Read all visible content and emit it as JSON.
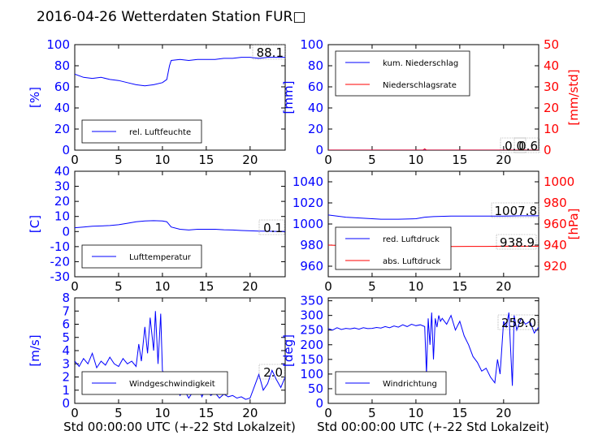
{
  "title": "2016-04-26 Wetterdaten Station FUR□",
  "xlabel": "Std 00:00:00 UTC (+-22 Std Lokalzeit)",
  "colors": {
    "primary": "#0000ff",
    "secondary": "#ff0000",
    "axis": "#000000"
  },
  "chart_data": [
    {
      "id": "humidity",
      "type": "line",
      "ylabel": "[%]",
      "ylim": [
        0,
        100
      ],
      "yticks": [
        0,
        20,
        40,
        60,
        80,
        100
      ],
      "xlim": [
        0,
        24
      ],
      "xticks": [
        0,
        5,
        10,
        15,
        20
      ],
      "legend": "lower-left",
      "annotation": "88.1",
      "series": [
        {
          "name": "rel. Luftfeuchte",
          "color": "#0000ff",
          "x": [
            0,
            1,
            2,
            3,
            4,
            5,
            6,
            7,
            8,
            9,
            10,
            10.5,
            10.8,
            11,
            12,
            13,
            14,
            15,
            16,
            17,
            18,
            19,
            20,
            21,
            22,
            23,
            24
          ],
          "y": [
            72,
            69,
            68,
            69,
            67,
            66,
            64,
            62,
            61,
            62,
            64,
            67,
            80,
            85,
            86,
            85,
            86,
            86,
            86,
            87,
            87,
            88,
            88,
            87,
            88,
            88,
            88
          ]
        }
      ]
    },
    {
      "id": "precip",
      "type": "line",
      "ylabel": "[mm]",
      "ylim": [
        0,
        100
      ],
      "yticks": [
        0,
        20,
        40,
        60,
        80,
        100
      ],
      "y2label": "[mm/std]",
      "y2lim": [
        0,
        50
      ],
      "y2ticks": [
        0,
        10,
        20,
        30,
        40,
        50
      ],
      "xlim": [
        0,
        24
      ],
      "xticks": [
        0,
        5,
        10,
        15,
        20
      ],
      "legend": "upper-left",
      "annotations": [
        "0.0",
        "0.6"
      ],
      "series": [
        {
          "name": "kum. Niederschlag",
          "axis": "left",
          "color": "#0000ff",
          "x": [
            0,
            24
          ],
          "y": [
            0.1,
            0.1
          ]
        },
        {
          "name": "Niederschlagsrate",
          "axis": "right",
          "color": "#ff0000",
          "x": [
            0,
            10.8,
            11,
            11.2,
            24
          ],
          "y": [
            0,
            0,
            0.6,
            0,
            0
          ]
        }
      ]
    },
    {
      "id": "temperature",
      "type": "line",
      "ylabel": "[C]",
      "ylim": [
        -30,
        40
      ],
      "yticks": [
        -30,
        -20,
        -10,
        0,
        10,
        20,
        30,
        40
      ],
      "xlim": [
        0,
        24
      ],
      "xticks": [
        0,
        5,
        10,
        15,
        20
      ],
      "legend": "lower-left",
      "annotation": "0.1",
      "series": [
        {
          "name": "Lufttemperatur",
          "color": "#0000ff",
          "x": [
            0,
            1,
            2,
            3,
            4,
            5,
            6,
            7,
            8,
            9,
            10,
            10.5,
            11,
            12,
            13,
            14,
            15,
            16,
            17,
            18,
            19,
            20,
            21,
            22,
            23,
            24
          ],
          "y": [
            2.5,
            3,
            3.5,
            3.7,
            4,
            4.5,
            5.5,
            6.5,
            7,
            7.2,
            7,
            6.5,
            3,
            1.5,
            1,
            1.5,
            1.5,
            1.5,
            1.2,
            1,
            0.7,
            0.5,
            0.3,
            0.2,
            0.1,
            0.1
          ]
        }
      ]
    },
    {
      "id": "pressure",
      "type": "line",
      "ylabel": "",
      "ylim": [
        950,
        1050
      ],
      "yticks": [
        960,
        980,
        1000,
        1020,
        1040
      ],
      "y2label": "[hPa]",
      "y2lim": [
        910,
        1010
      ],
      "y2ticks": [
        920,
        940,
        960,
        980,
        1000
      ],
      "xlim": [
        0,
        24
      ],
      "xticks": [
        0,
        5,
        10,
        15,
        20
      ],
      "legend": "lower-left",
      "annotations": [
        "1007.8",
        "938.9"
      ],
      "series": [
        {
          "name": "red. Luftdruck",
          "axis": "left",
          "color": "#0000ff",
          "x": [
            0,
            2,
            4,
            6,
            8,
            10,
            11,
            12,
            14,
            16,
            18,
            20,
            22,
            24
          ],
          "y": [
            1008.5,
            1006.5,
            1005.5,
            1004.5,
            1004.5,
            1005,
            1006.5,
            1007,
            1007.5,
            1007.5,
            1007.5,
            1007.5,
            1007.8,
            1007.8
          ]
        },
        {
          "name": "abs. Luftdruck",
          "axis": "right",
          "color": "#ff0000",
          "x": [
            0,
            2,
            4,
            6,
            8,
            10,
            12,
            14,
            16,
            18,
            20,
            22,
            24
          ],
          "y": [
            940,
            939.5,
            939,
            938.8,
            938.6,
            938.5,
            938.6,
            938.7,
            938.8,
            938.8,
            938.9,
            938.9,
            938.9
          ]
        }
      ]
    },
    {
      "id": "windspeed",
      "type": "line",
      "ylabel": "[m/s]",
      "ylim": [
        0,
        8
      ],
      "yticks": [
        0,
        1,
        2,
        3,
        4,
        5,
        6,
        7,
        8
      ],
      "xlim": [
        0,
        24
      ],
      "xticks": [
        0,
        5,
        10,
        15,
        20
      ],
      "legend": "lower-left",
      "annotation": "2.0",
      "series": [
        {
          "name": "Windgeschwindigkeit",
          "color": "#0000ff",
          "x": [
            0,
            0.5,
            1,
            1.5,
            2,
            2.5,
            3,
            3.5,
            4,
            4.5,
            5,
            5.5,
            6,
            6.5,
            7,
            7.3,
            7.6,
            8,
            8.3,
            8.6,
            9,
            9.2,
            9.5,
            9.8,
            10,
            10.3,
            10.6,
            11,
            11.5,
            12,
            12.5,
            13,
            13.5,
            14,
            14.5,
            15,
            15.5,
            16,
            16.5,
            17,
            17.5,
            18,
            18.5,
            19,
            19.5,
            20,
            20.5,
            21,
            21.5,
            22,
            22.5,
            23,
            23.5,
            24
          ],
          "y": [
            3.2,
            2.8,
            3.4,
            3.0,
            3.8,
            2.7,
            3.2,
            2.9,
            3.5,
            3.0,
            2.8,
            3.4,
            3.0,
            3.2,
            2.8,
            4.5,
            3.2,
            5.8,
            3.8,
            6.5,
            4.0,
            7.0,
            3.0,
            6.8,
            2.5,
            2.0,
            1.2,
            0.8,
            1.5,
            0.6,
            1.0,
            0.4,
            0.9,
            1.5,
            0.5,
            1.2,
            0.6,
            0.8,
            0.4,
            0.7,
            0.5,
            0.6,
            0.4,
            0.5,
            0.3,
            0.4,
            1.3,
            2.2,
            1.0,
            1.5,
            2.5,
            1.8,
            1.2,
            2.0
          ]
        }
      ]
    },
    {
      "id": "winddir",
      "type": "line",
      "ylabel": "[deg]",
      "ylim": [
        0,
        360
      ],
      "yticks": [
        0,
        50,
        100,
        150,
        200,
        250,
        300,
        350
      ],
      "xlim": [
        0,
        24
      ],
      "xticks": [
        0,
        5,
        10,
        15,
        20
      ],
      "legend": "lower-left",
      "annotation": "259.0",
      "series": [
        {
          "name": "Windrichtung",
          "color": "#0000ff",
          "x": [
            0,
            0.5,
            1,
            1.5,
            2,
            2.5,
            3,
            3.5,
            4,
            4.5,
            5,
            5.5,
            6,
            6.5,
            7,
            7.5,
            8,
            8.5,
            9,
            9.5,
            10,
            10.5,
            11,
            11.2,
            11.4,
            11.6,
            11.8,
            12,
            12.2,
            12.4,
            12.6,
            12.8,
            13,
            13.5,
            14,
            14.5,
            15,
            15.5,
            16,
            16.5,
            17,
            17.5,
            18,
            18.5,
            19,
            19.3,
            19.6,
            20,
            20.3,
            20.6,
            21,
            21.2,
            21.5,
            22,
            22.5,
            23,
            23.5,
            24
          ],
          "y": [
            255,
            250,
            258,
            252,
            256,
            254,
            257,
            253,
            258,
            255,
            256,
            259,
            257,
            262,
            258,
            264,
            260,
            268,
            262,
            270,
            265,
            268,
            262,
            100,
            290,
            200,
            310,
            150,
            290,
            260,
            300,
            280,
            290,
            270,
            300,
            250,
            280,
            230,
            200,
            160,
            140,
            110,
            120,
            90,
            70,
            150,
            100,
            280,
            260,
            310,
            60,
            300,
            250,
            290,
            270,
            280,
            240,
            260
          ]
        }
      ]
    }
  ]
}
